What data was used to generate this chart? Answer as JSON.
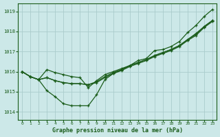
{
  "xlabel": "Graphe pression niveau de la mer (hPa)",
  "ylim": [
    1013.6,
    1019.4
  ],
  "xlim": [
    -0.5,
    23.5
  ],
  "yticks": [
    1014,
    1015,
    1016,
    1017,
    1018,
    1019
  ],
  "xticks": [
    0,
    1,
    2,
    3,
    4,
    5,
    6,
    7,
    8,
    9,
    10,
    11,
    12,
    13,
    14,
    15,
    16,
    17,
    18,
    19,
    20,
    21,
    22,
    23
  ],
  "bg_color": "#cce8e8",
  "grid_color": "#aacccc",
  "line_color": "#1a5c1a",
  "series": [
    [
      1016.0,
      1015.75,
      1015.6,
      1015.05,
      1014.75,
      1014.4,
      1014.3,
      1014.3,
      1014.3,
      1014.85,
      1015.6,
      1015.9,
      1016.1,
      1016.3,
      1016.55,
      1016.65,
      1017.05,
      1017.1,
      1017.25,
      1017.5,
      1017.95,
      1018.3,
      1018.75,
      1019.1
    ],
    [
      1016.0,
      1015.75,
      1015.6,
      1015.7,
      1015.55,
      1015.45,
      1015.4,
      1015.4,
      1015.35,
      1015.5,
      1015.75,
      1015.95,
      1016.1,
      1016.3,
      1016.45,
      1016.6,
      1016.8,
      1016.95,
      1017.1,
      1017.3,
      1017.6,
      1017.85,
      1018.25,
      1018.55
    ],
    [
      1016.0,
      1015.75,
      1015.6,
      1015.7,
      1015.55,
      1015.45,
      1015.4,
      1015.4,
      1015.35,
      1015.45,
      1015.7,
      1015.9,
      1016.05,
      1016.25,
      1016.4,
      1016.55,
      1016.75,
      1016.9,
      1017.05,
      1017.25,
      1017.55,
      1017.8,
      1018.2,
      1018.5
    ],
    [
      1016.0,
      1015.75,
      1015.6,
      1016.1,
      1015.95,
      1015.85,
      1015.75,
      1015.7,
      1015.2,
      1015.55,
      1015.85,
      1016.0,
      1016.15,
      1016.3,
      1016.45,
      1016.6,
      1016.8,
      1016.95,
      1017.1,
      1017.3,
      1017.6,
      1017.9,
      1018.25,
      1018.55
    ]
  ]
}
